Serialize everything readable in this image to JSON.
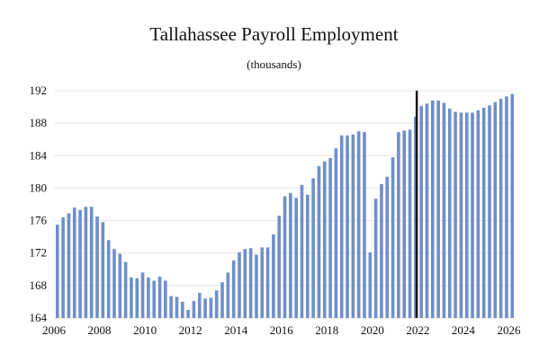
{
  "chart_data": {
    "type": "bar",
    "title": "Tallahassee Payroll Employment",
    "subtitle": "(thousands)",
    "xlabel": "",
    "ylabel": "",
    "ylim": [
      164,
      192
    ],
    "yticks": [
      164,
      168,
      172,
      176,
      180,
      184,
      188,
      192
    ],
    "xlim": [
      2006,
      2026.1
    ],
    "xticks": [
      2006,
      2008,
      2010,
      2012,
      2014,
      2016,
      2018,
      2020,
      2022,
      2024,
      2026
    ],
    "bar_color": "#6f8fc9",
    "divider_x": 2021.95,
    "divider_color": "#000000",
    "series": [
      {
        "name": "Payroll Employment",
        "x": [
          2006.15,
          2006.4,
          2006.65,
          2006.9,
          2007.15,
          2007.4,
          2007.65,
          2007.9,
          2008.15,
          2008.4,
          2008.65,
          2008.9,
          2009.15,
          2009.4,
          2009.65,
          2009.9,
          2010.15,
          2010.4,
          2010.65,
          2010.9,
          2011.15,
          2011.4,
          2011.65,
          2011.9,
          2012.15,
          2012.4,
          2012.65,
          2012.9,
          2013.15,
          2013.4,
          2013.65,
          2013.9,
          2014.15,
          2014.4,
          2014.65,
          2014.9,
          2015.15,
          2015.4,
          2015.65,
          2015.9,
          2016.15,
          2016.4,
          2016.65,
          2016.9,
          2017.15,
          2017.4,
          2017.65,
          2017.9,
          2018.15,
          2018.4,
          2018.65,
          2018.9,
          2019.15,
          2019.4,
          2019.65,
          2019.9,
          2020.15,
          2020.4,
          2020.65,
          2020.9,
          2021.15,
          2021.4,
          2021.65,
          2021.9,
          2022.15,
          2022.4,
          2022.65,
          2022.9,
          2023.15,
          2023.4,
          2023.65,
          2023.9,
          2024.15,
          2024.4,
          2024.65,
          2024.9,
          2025.15,
          2025.4,
          2025.65,
          2025.9
        ],
        "values": [
          175.5,
          176.4,
          176.9,
          177.6,
          177.3,
          177.7,
          177.7,
          176.5,
          175.8,
          173.6,
          172.5,
          171.9,
          170.9,
          169.0,
          168.9,
          169.6,
          169.0,
          168.6,
          169.1,
          168.6,
          166.7,
          166.6,
          166.0,
          165.0,
          166.1,
          167.1,
          166.4,
          166.5,
          167.4,
          168.4,
          169.6,
          171.1,
          172.1,
          172.5,
          172.6,
          171.8,
          172.7,
          172.7,
          174.3,
          176.6,
          179.0,
          179.4,
          178.8,
          180.4,
          179.2,
          181.2,
          182.7,
          183.3,
          183.7,
          184.9,
          186.5,
          186.5,
          186.6,
          187.0,
          186.9,
          172.1,
          178.7,
          180.5,
          181.4,
          183.8,
          186.9,
          187.1,
          187.2,
          188.8,
          190.1,
          190.4,
          190.8,
          190.8,
          190.5,
          189.8,
          189.4,
          189.3,
          189.3,
          189.3,
          189.6,
          189.9,
          190.2,
          190.6,
          191.0,
          191.3
        ]
      }
    ]
  },
  "extra_last_bar": {
    "x": 2026.15,
    "value": 191.6
  }
}
